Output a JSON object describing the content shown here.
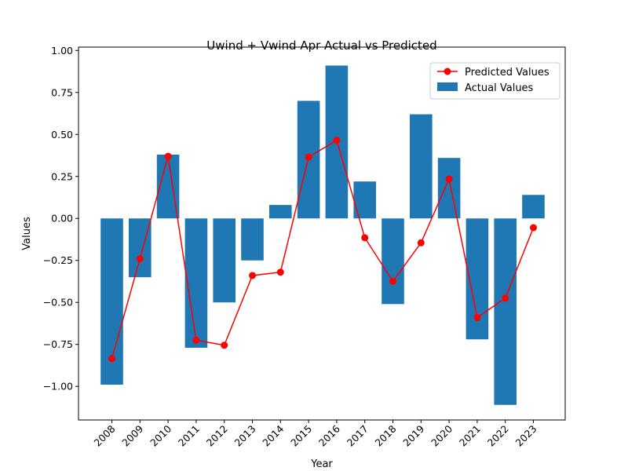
{
  "chart_data": {
    "type": "bar",
    "title": "Uwind + Vwind Apr Actual vs Predicted",
    "xlabel": "Year",
    "ylabel": "Values",
    "categories": [
      "2008",
      "2009",
      "2010",
      "2011",
      "2012",
      "2013",
      "2014",
      "2015",
      "2016",
      "2017",
      "2018",
      "2019",
      "2020",
      "2021",
      "2022",
      "2023"
    ],
    "series": [
      {
        "name": "Actual Values",
        "type": "bar",
        "color": "#1f77b4",
        "values": [
          -0.99,
          -0.35,
          0.38,
          -0.77,
          -0.5,
          -0.25,
          0.08,
          0.7,
          0.91,
          0.22,
          -0.51,
          0.62,
          0.36,
          -0.72,
          -1.11,
          0.14
        ]
      },
      {
        "name": "Predicted Values",
        "type": "line",
        "color": "#ff0000",
        "values": [
          -0.835,
          -0.24,
          0.37,
          -0.725,
          -0.755,
          -0.34,
          -0.32,
          0.365,
          0.465,
          -0.115,
          -0.375,
          -0.145,
          0.235,
          -0.59,
          -0.475,
          -0.055
        ]
      }
    ],
    "ylim": [
      -1.2,
      1.02
    ],
    "yticks": [
      -1.0,
      -0.75,
      -0.5,
      -0.25,
      0.0,
      0.25,
      0.5,
      0.75,
      1.0
    ],
    "ytick_labels": [
      "−1.00",
      "−0.75",
      "−0.50",
      "−0.25",
      "0.00",
      "0.25",
      "0.50",
      "0.75",
      "1.00"
    ],
    "grid": false,
    "legend_position": "top-right",
    "legend": [
      "Predicted Values",
      "Actual Values"
    ]
  }
}
